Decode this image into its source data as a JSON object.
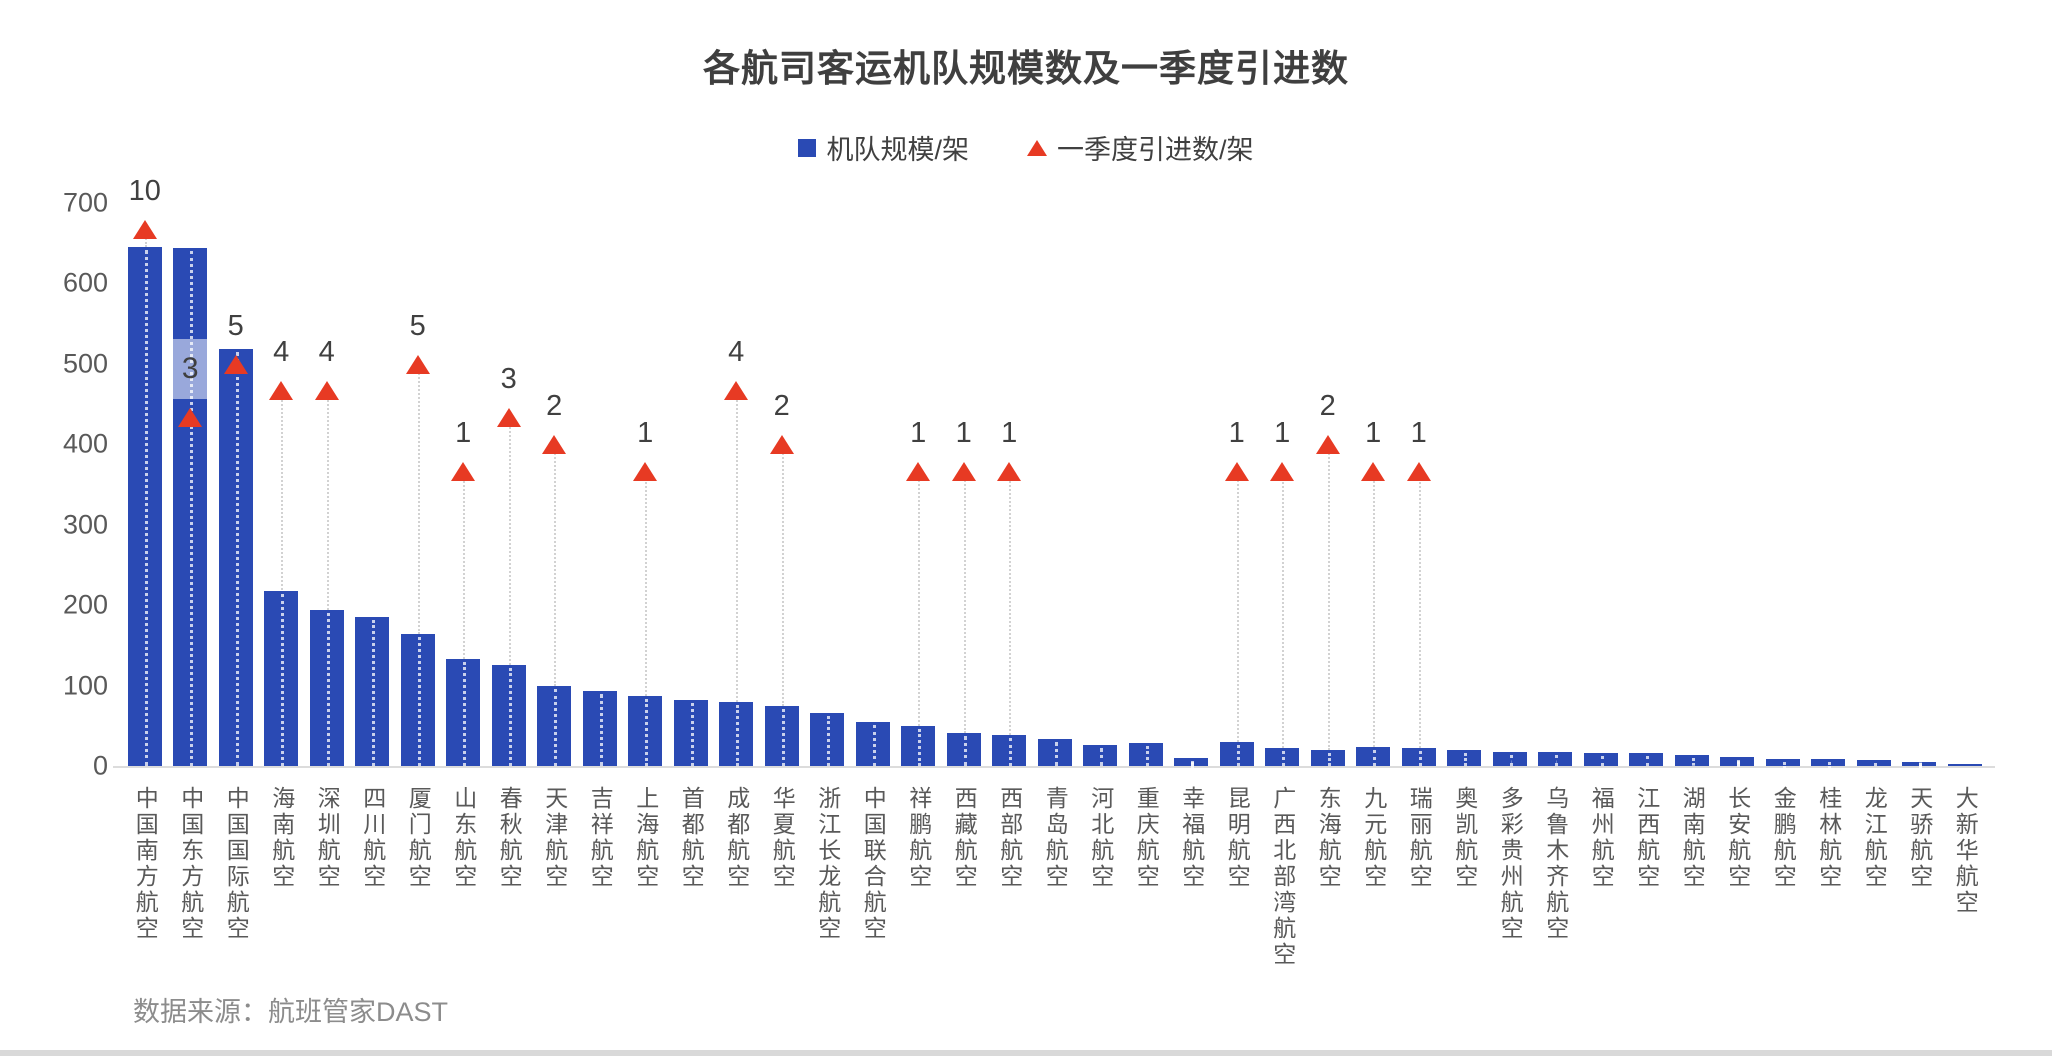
{
  "chart_data": {
    "type": "bar",
    "title": "各航司客运机队规模数及一季度引进数",
    "source_note": "数据来源：航班管家DAST",
    "legend": [
      {
        "label": "机队规模/架",
        "marker": "square",
        "color": "#2a4ab4"
      },
      {
        "label": "一季度引进数/架",
        "marker": "triangle",
        "color": "#e73a23"
      }
    ],
    "ylim": [
      0,
      700
    ],
    "yticks": [
      0,
      100,
      200,
      300,
      400,
      500,
      600,
      700
    ],
    "grid": "none",
    "legend_position": "top-center",
    "categories": [
      "中国南方航空",
      "中国东方航空",
      "中国国际航空",
      "海南航空",
      "深圳航空",
      "四川航空",
      "厦门航空",
      "山东航空",
      "春秋航空",
      "天津航空",
      "吉祥航空",
      "上海航空",
      "首都航空",
      "成都航空",
      "华夏航空",
      "浙江长龙航空",
      "中国联合航空",
      "祥鹏航空",
      "西藏航空",
      "西部航空",
      "青岛航空",
      "河北航空",
      "重庆航空",
      "幸福航空",
      "昆明航空",
      "广西北部湾航空",
      "东海航空",
      "九元航空",
      "瑞丽航空",
      "奥凯航空",
      "多彩贵州航空",
      "乌鲁木齐航空",
      "福州航空",
      "江西航空",
      "湖南航空",
      "长安航空",
      "金鹏航空",
      "桂林航空",
      "龙江航空",
      "天骄航空",
      "大新华航空"
    ],
    "series": [
      {
        "name": "机队规模/架",
        "render": "bar",
        "color": "#2a4ab4",
        "values": [
          645,
          644,
          518,
          218,
          194,
          185,
          164,
          133,
          125,
          99,
          93,
          87,
          82,
          79,
          75,
          66,
          55,
          50,
          41,
          38,
          34,
          26,
          28,
          10,
          30,
          22,
          20,
          23,
          22,
          20,
          18,
          17,
          16,
          16,
          14,
          11,
          9,
          9,
          8,
          5,
          2
        ]
      },
      {
        "name": "一季度引进数/架",
        "render": "triangle-marker",
        "color": "#e73a23",
        "values": [
          10,
          3,
          5,
          4,
          4,
          null,
          5,
          1,
          3,
          2,
          null,
          1,
          null,
          4,
          2,
          null,
          null,
          1,
          1,
          1,
          null,
          null,
          null,
          null,
          1,
          1,
          2,
          1,
          1,
          null,
          null,
          null,
          null,
          null,
          null,
          null,
          null,
          null,
          null,
          null,
          null
        ],
        "marker_axis": {
          "plot_base": 333.3,
          "plot_per_unit": 33.33
        }
      }
    ],
    "highlight": {
      "category": "中国东方航空",
      "label_value": 3,
      "style": "light-overlay-label-box"
    }
  },
  "layout_colors": {
    "bar_blue": "#2a4ab4",
    "triangle_red": "#e73a23",
    "axis_text": "#595959",
    "label_text": "#404040",
    "title_text": "#3f3f3f",
    "source_text": "#8c8c8c",
    "baseline": "#dcdcdc"
  }
}
